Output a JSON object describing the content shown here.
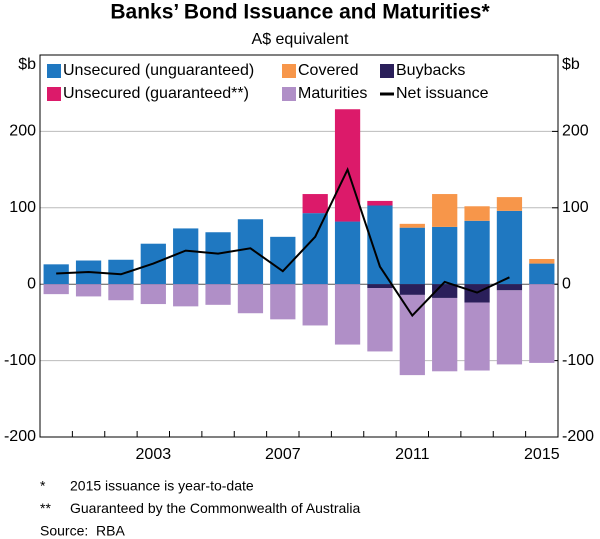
{
  "chart_data": {
    "type": "bar",
    "title": "Banks’ Bond Issuance and Maturities*",
    "subtitle": "A$ equivalent",
    "y_label": "$b",
    "y2_label": "$b",
    "categories": [
      "2000",
      "2001",
      "2002",
      "2003",
      "2004",
      "2005",
      "2006",
      "2007",
      "2008",
      "2009",
      "2010",
      "2011",
      "2012",
      "2013",
      "2014",
      "2015"
    ],
    "xtick_labels": [
      null,
      null,
      null,
      "2003",
      null,
      null,
      null,
      "2007",
      null,
      null,
      null,
      "2011",
      null,
      null,
      null,
      "2015"
    ],
    "series": [
      {
        "name": "Unsecured (unguaranteed)",
        "color": "#1f78c1",
        "values": [
          26,
          31,
          32,
          53,
          73,
          68,
          85,
          62,
          93,
          82,
          103,
          74,
          75,
          83,
          96,
          27
        ]
      },
      {
        "name": "Covered",
        "color": "#f7964a",
        "values": [
          0,
          0,
          0,
          0,
          0,
          0,
          0,
          0,
          0,
          0,
          0,
          5,
          43,
          19,
          18,
          6
        ]
      },
      {
        "name": "Buybacks",
        "color": "#2a1f5a",
        "values": [
          0,
          0,
          0,
          0,
          0,
          0,
          0,
          0,
          0,
          0,
          -5,
          -14,
          -18,
          -24,
          -8,
          0
        ]
      },
      {
        "name": "Unsecured (guaranteed**)",
        "color": "#dc1a6a",
        "values": [
          0,
          0,
          0,
          0,
          0,
          0,
          0,
          0,
          25,
          147,
          6,
          0,
          0,
          0,
          0,
          0
        ]
      },
      {
        "name": "Maturities",
        "color": "#b08fc7",
        "values": [
          -13,
          -16,
          -21,
          -26,
          -29,
          -27,
          -38,
          -46,
          -54,
          -79,
          -83,
          -105,
          -96,
          -89,
          -97,
          -103
        ]
      },
      {
        "name": "Net issuance",
        "type": "line",
        "color": "#000000",
        "values": [
          14,
          16,
          13,
          27,
          44,
          40,
          47,
          17,
          62,
          150,
          23,
          -41,
          3,
          -11,
          9,
          null
        ]
      }
    ],
    "ylim": [
      -200,
      300
    ],
    "yticks": [
      -200,
      -100,
      0,
      100,
      200
    ],
    "y2lim": [
      -200,
      300
    ],
    "y2ticks": [
      -200,
      -100,
      0,
      100,
      200
    ],
    "grid": true,
    "footnotes": [
      [
        "*",
        "2015 issuance is year-to-date"
      ],
      [
        "**",
        "Guaranteed by the Commonwealth of Australia"
      ],
      [
        "Source:",
        "RBA"
      ]
    ]
  }
}
